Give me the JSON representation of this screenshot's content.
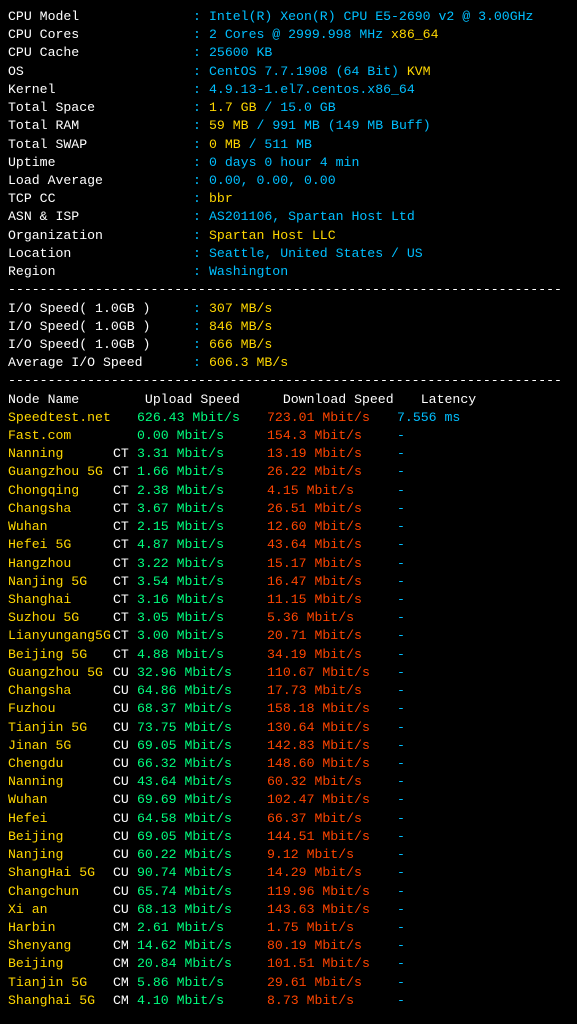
{
  "colors": {
    "bg": "#000000",
    "white": "#ffffff",
    "cyan": "#00bfff",
    "yellow": "#ffd700",
    "green": "#00ff7f",
    "red": "#ff4500",
    "gray": "#aaaaaa"
  },
  "sysinfo": [
    {
      "label": "CPU Model",
      "parts": [
        [
          "cyan",
          "Intel(R) Xeon(R) CPU E5-2690 v2 @ 3.00GHz"
        ]
      ]
    },
    {
      "label": "CPU Cores",
      "parts": [
        [
          "cyan",
          "2 Cores @ 2999.998 MHz"
        ],
        [
          "yellow",
          " x86_64"
        ]
      ]
    },
    {
      "label": "CPU Cache",
      "parts": [
        [
          "cyan",
          "25600 KB"
        ]
      ]
    },
    {
      "label": "OS",
      "parts": [
        [
          "cyan",
          "CentOS 7.7.1908 (64 Bit)"
        ],
        [
          "yellow",
          " KVM"
        ]
      ]
    },
    {
      "label": "Kernel",
      "parts": [
        [
          "cyan",
          "4.9.13-1.el7.centos.x86_64"
        ]
      ]
    },
    {
      "label": "Total Space",
      "parts": [
        [
          "yellow",
          "1.7 GB"
        ],
        [
          "cyan",
          " / "
        ],
        [
          "cyan",
          "15.0 GB"
        ]
      ]
    },
    {
      "label": "Total RAM",
      "parts": [
        [
          "yellow",
          "59 MB"
        ],
        [
          "cyan",
          " / "
        ],
        [
          "cyan",
          "991 MB "
        ],
        [
          "cyan",
          "(149 MB Buff)"
        ]
      ]
    },
    {
      "label": "Total SWAP",
      "parts": [
        [
          "yellow",
          "0 MB"
        ],
        [
          "cyan",
          " / "
        ],
        [
          "cyan",
          "511 MB"
        ]
      ]
    },
    {
      "label": "Uptime",
      "parts": [
        [
          "cyan",
          "0 days 0 hour 4 min"
        ]
      ]
    },
    {
      "label": "Load Average",
      "parts": [
        [
          "cyan",
          "0.00, 0.00, 0.00"
        ]
      ]
    },
    {
      "label": "TCP CC",
      "parts": [
        [
          "yellow",
          "bbr"
        ]
      ]
    },
    {
      "label": "ASN & ISP",
      "parts": [
        [
          "cyan",
          "AS201106, Spartan Host Ltd"
        ]
      ]
    },
    {
      "label": "Organization",
      "parts": [
        [
          "yellow",
          "Spartan Host LLC"
        ]
      ]
    },
    {
      "label": "Location",
      "parts": [
        [
          "cyan",
          "Seattle, United States / US"
        ]
      ]
    },
    {
      "label": "Region",
      "parts": [
        [
          "cyan",
          "Washington"
        ]
      ]
    }
  ],
  "dashline": "----------------------------------------------------------------------",
  "io": [
    {
      "label": "I/O Speed( 1.0GB )",
      "value": "307 MB/s"
    },
    {
      "label": "I/O Speed( 1.0GB )",
      "value": "846 MB/s"
    },
    {
      "label": "I/O Speed( 1.0GB )",
      "value": "666 MB/s"
    },
    {
      "label": "Average I/O Speed",
      "value": "606.3 MB/s"
    }
  ],
  "speedtest": {
    "headers": {
      "node": "Node Name",
      "upload": "Upload Speed",
      "download": "Download Speed",
      "latency": "Latency"
    },
    "rows": [
      {
        "node": "Speedtest.net",
        "tag": "",
        "up": "626.43 Mbit/s",
        "down": "723.01 Mbit/s",
        "lat": "7.556 ms"
      },
      {
        "node": "Fast.com",
        "tag": "",
        "up": "0.00 Mbit/s",
        "down": "154.3 Mbit/s",
        "lat": "-"
      },
      {
        "node": "Nanning",
        "tag": "CT",
        "up": "3.31 Mbit/s",
        "down": "13.19 Mbit/s",
        "lat": "-"
      },
      {
        "node": "Guangzhou 5G",
        "tag": "CT",
        "up": "1.66 Mbit/s",
        "down": "26.22 Mbit/s",
        "lat": "-"
      },
      {
        "node": "Chongqing",
        "tag": "CT",
        "up": "2.38 Mbit/s",
        "down": "4.15 Mbit/s",
        "lat": "-"
      },
      {
        "node": "Changsha",
        "tag": "CT",
        "up": "3.67 Mbit/s",
        "down": "26.51 Mbit/s",
        "lat": "-"
      },
      {
        "node": "Wuhan",
        "tag": "CT",
        "up": "2.15 Mbit/s",
        "down": "12.60 Mbit/s",
        "lat": "-"
      },
      {
        "node": "Hefei 5G",
        "tag": "CT",
        "up": "4.87 Mbit/s",
        "down": "43.64 Mbit/s",
        "lat": "-"
      },
      {
        "node": "Hangzhou",
        "tag": "CT",
        "up": "3.22 Mbit/s",
        "down": "15.17 Mbit/s",
        "lat": "-"
      },
      {
        "node": "Nanjing 5G",
        "tag": "CT",
        "up": "3.54 Mbit/s",
        "down": "16.47 Mbit/s",
        "lat": "-"
      },
      {
        "node": "Shanghai",
        "tag": "CT",
        "up": "3.16 Mbit/s",
        "down": "11.15 Mbit/s",
        "lat": "-"
      },
      {
        "node": "Suzhou 5G",
        "tag": "CT",
        "up": "3.05 Mbit/s",
        "down": "5.36 Mbit/s",
        "lat": "-"
      },
      {
        "node": "Lianyungang5G",
        "tag": "CT",
        "up": "3.00 Mbit/s",
        "down": "20.71 Mbit/s",
        "lat": "-"
      },
      {
        "node": "Beijing 5G",
        "tag": "CT",
        "up": "4.88 Mbit/s",
        "down": "34.19 Mbit/s",
        "lat": "-"
      },
      {
        "node": "Guangzhou 5G",
        "tag": "CU",
        "up": "32.96 Mbit/s",
        "down": "110.67 Mbit/s",
        "lat": "-"
      },
      {
        "node": "Changsha",
        "tag": "CU",
        "up": "64.86 Mbit/s",
        "down": "17.73 Mbit/s",
        "lat": "-"
      },
      {
        "node": "Fuzhou",
        "tag": "CU",
        "up": "68.37 Mbit/s",
        "down": "158.18 Mbit/s",
        "lat": "-"
      },
      {
        "node": "Tianjin 5G",
        "tag": "CU",
        "up": "73.75 Mbit/s",
        "down": "130.64 Mbit/s",
        "lat": "-"
      },
      {
        "node": "Jinan 5G",
        "tag": "CU",
        "up": "69.05 Mbit/s",
        "down": "142.83 Mbit/s",
        "lat": "-"
      },
      {
        "node": "Chengdu",
        "tag": "CU",
        "up": "66.32 Mbit/s",
        "down": "148.60 Mbit/s",
        "lat": "-"
      },
      {
        "node": "Nanning",
        "tag": "CU",
        "up": "43.64 Mbit/s",
        "down": "60.32 Mbit/s",
        "lat": "-"
      },
      {
        "node": "Wuhan",
        "tag": "CU",
        "up": "69.69 Mbit/s",
        "down": "102.47 Mbit/s",
        "lat": "-"
      },
      {
        "node": "Hefei",
        "tag": "CU",
        "up": "64.58 Mbit/s",
        "down": "66.37 Mbit/s",
        "lat": "-"
      },
      {
        "node": "Beijing",
        "tag": "CU",
        "up": "69.05 Mbit/s",
        "down": "144.51 Mbit/s",
        "lat": "-"
      },
      {
        "node": "Nanjing",
        "tag": "CU",
        "up": "60.22 Mbit/s",
        "down": "9.12 Mbit/s",
        "lat": "-"
      },
      {
        "node": "ShangHai 5G",
        "tag": "CU",
        "up": "90.74 Mbit/s",
        "down": "14.29 Mbit/s",
        "lat": "-"
      },
      {
        "node": "Changchun",
        "tag": "CU",
        "up": "65.74 Mbit/s",
        "down": "119.96 Mbit/s",
        "lat": "-"
      },
      {
        "node": "Xi an",
        "tag": "CU",
        "up": "68.13 Mbit/s",
        "down": "143.63 Mbit/s",
        "lat": "-"
      },
      {
        "node": "Harbin",
        "tag": "CM",
        "up": "2.61 Mbit/s",
        "down": "1.75 Mbit/s",
        "lat": "-"
      },
      {
        "node": "Shenyang",
        "tag": "CM",
        "up": "14.62 Mbit/s",
        "down": "80.19 Mbit/s",
        "lat": "-"
      },
      {
        "node": "Beijing",
        "tag": "CM",
        "up": "20.84 Mbit/s",
        "down": "101.51 Mbit/s",
        "lat": "-"
      },
      {
        "node": "Tianjin 5G",
        "tag": "CM",
        "up": "5.86 Mbit/s",
        "down": "29.61 Mbit/s",
        "lat": "-"
      },
      {
        "node": "Shanghai 5G",
        "tag": "CM",
        "up": "4.10 Mbit/s",
        "down": "8.73 Mbit/s",
        "lat": "-"
      }
    ]
  }
}
